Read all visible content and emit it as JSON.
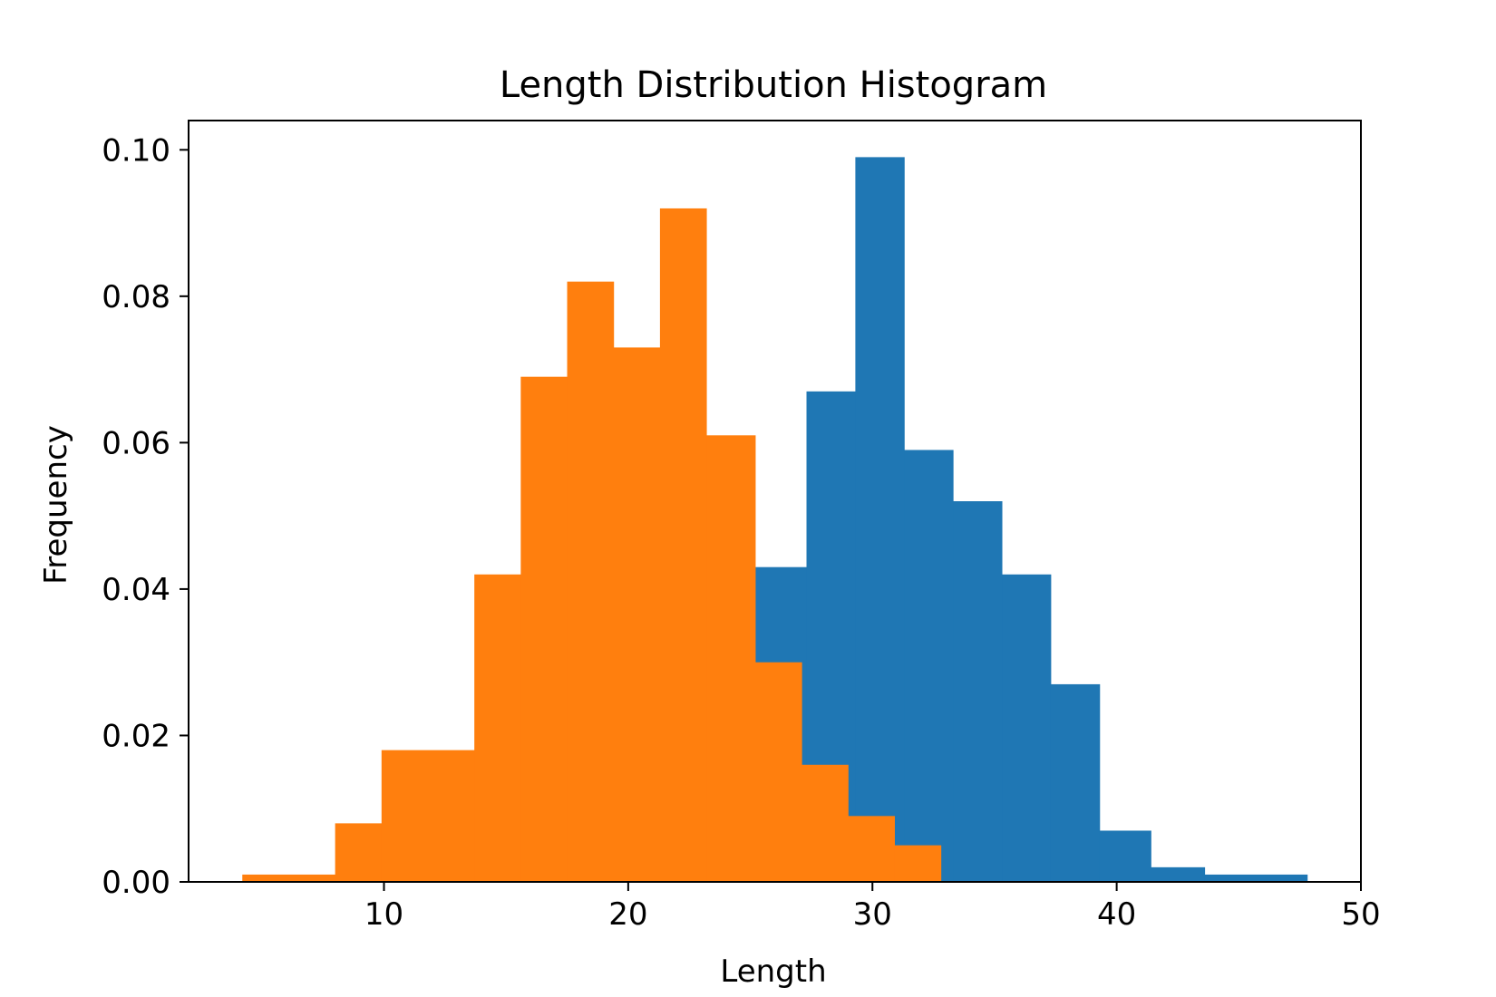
{
  "chart_data": {
    "type": "bar",
    "title": "Length Distribution Histogram",
    "xlabel": "Length",
    "ylabel": "Frequency",
    "xlim": [
      2,
      50
    ],
    "ylim": [
      0,
      0.104
    ],
    "xticks": [
      10,
      20,
      30,
      40,
      50
    ],
    "yticks": [
      0.0,
      0.02,
      0.04,
      0.06,
      0.08,
      0.1
    ],
    "ytick_labels": [
      "0.00",
      "0.02",
      "0.04",
      "0.06",
      "0.08",
      "0.10"
    ],
    "xtick_labels": [
      "10",
      "20",
      "30",
      "40",
      "50"
    ],
    "grid": false,
    "legend": false,
    "series": [
      {
        "color": "#1f77b4",
        "bins": [
          {
            "x0": 25.2,
            "x1": 27.3,
            "y": 0.043
          },
          {
            "x0": 27.3,
            "x1": 29.3,
            "y": 0.067
          },
          {
            "x0": 29.3,
            "x1": 31.3,
            "y": 0.099
          },
          {
            "x0": 31.3,
            "x1": 33.3,
            "y": 0.059
          },
          {
            "x0": 33.3,
            "x1": 35.3,
            "y": 0.052
          },
          {
            "x0": 35.3,
            "x1": 37.3,
            "y": 0.042
          },
          {
            "x0": 37.3,
            "x1": 39.3,
            "y": 0.027
          },
          {
            "x0": 39.3,
            "x1": 41.4,
            "y": 0.007
          },
          {
            "x0": 41.4,
            "x1": 43.6,
            "y": 0.002
          },
          {
            "x0": 43.6,
            "x1": 47.8,
            "y": 0.001
          }
        ]
      },
      {
        "color": "#ff7f0e",
        "bins": [
          {
            "x0": 4.2,
            "x1": 8.0,
            "y": 0.001
          },
          {
            "x0": 8.0,
            "x1": 9.9,
            "y": 0.008
          },
          {
            "x0": 9.9,
            "x1": 13.7,
            "y": 0.018
          },
          {
            "x0": 13.7,
            "x1": 15.6,
            "y": 0.042
          },
          {
            "x0": 15.6,
            "x1": 17.5,
            "y": 0.069
          },
          {
            "x0": 17.5,
            "x1": 19.4,
            "y": 0.082
          },
          {
            "x0": 19.4,
            "x1": 21.3,
            "y": 0.073
          },
          {
            "x0": 21.3,
            "x1": 23.2,
            "y": 0.092
          },
          {
            "x0": 23.2,
            "x1": 25.2,
            "y": 0.061
          },
          {
            "x0": 25.2,
            "x1": 27.1,
            "y": 0.03
          },
          {
            "x0": 27.1,
            "x1": 29.0,
            "y": 0.016
          },
          {
            "x0": 29.0,
            "x1": 30.9,
            "y": 0.009
          },
          {
            "x0": 30.9,
            "x1": 32.8,
            "y": 0.005
          }
        ]
      }
    ]
  }
}
